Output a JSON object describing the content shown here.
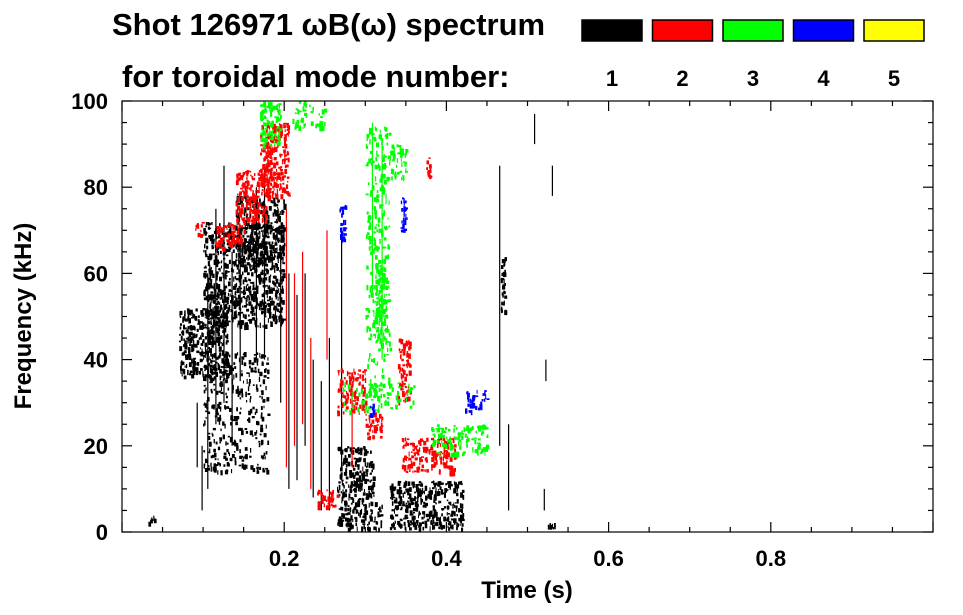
{
  "chart_data": {
    "type": "heatmap",
    "title_line1": "Shot 126971 ωB(ω) spectrum",
    "title_line2": "for toroidal mode number:",
    "xlabel": "Time (s)",
    "ylabel": "Frequency (kHz)",
    "xlim": [
      0.0,
      1.0
    ],
    "ylim": [
      0,
      100
    ],
    "x_ticks": [
      "0.2",
      "0.4",
      "0.6",
      "0.8"
    ],
    "x_tick_values": [
      0.2,
      0.4,
      0.6,
      0.8
    ],
    "y_ticks": [
      "0",
      "20",
      "40",
      "60",
      "80",
      "100"
    ],
    "y_tick_values": [
      0,
      20,
      40,
      60,
      80,
      100
    ],
    "grid": false,
    "legend_position": "top-right",
    "legend": [
      {
        "mode": "1",
        "color": "#000000"
      },
      {
        "mode": "2",
        "color": "#ff0000"
      },
      {
        "mode": "3",
        "color": "#00ff00"
      },
      {
        "mode": "4",
        "color": "#0000ff"
      },
      {
        "mode": "5",
        "color": "#ffff00"
      }
    ],
    "series": [
      {
        "mode": "1",
        "color": "#000000",
        "blobs": [
          {
            "t": [
              0.07,
              0.13
            ],
            "f": [
              36,
              52
            ],
            "density": 0.65
          },
          {
            "t": [
              0.1,
              0.2
            ],
            "f": [
              48,
              72
            ],
            "density": 0.55
          },
          {
            "t": [
              0.14,
              0.2
            ],
            "f": [
              62,
              78
            ],
            "density": 0.5
          },
          {
            "t": [
              0.1,
              0.18
            ],
            "f": [
              14,
              42
            ],
            "density": 0.25
          },
          {
            "t": [
              0.265,
              0.31
            ],
            "f": [
              1,
              20
            ],
            "density": 0.55
          },
          {
            "t": [
              0.31,
              0.32
            ],
            "f": [
              1,
              7
            ],
            "density": 0.5
          },
          {
            "t": [
              0.33,
              0.42
            ],
            "f": [
              1,
              12
            ],
            "density": 0.6
          },
          {
            "t": [
              0.467,
              0.472
            ],
            "f": [
              50,
              64
            ],
            "density": 0.8
          },
          {
            "t": [
              0.03,
              0.04
            ],
            "f": [
              2,
              4
            ],
            "density": 0.6
          },
          {
            "t": [
              0.525,
              0.535
            ],
            "f": [
              1,
              3
            ],
            "density": 0.6
          }
        ],
        "streaks": [
          {
            "t": 0.105,
            "f": [
              10,
              60
            ]
          },
          {
            "t": 0.115,
            "f": [
              25,
              75
            ]
          },
          {
            "t": 0.125,
            "f": [
              30,
              85
            ]
          },
          {
            "t": 0.135,
            "f": [
              20,
              65
            ]
          },
          {
            "t": 0.145,
            "f": [
              35,
              70
            ]
          },
          {
            "t": 0.165,
            "f": [
              40,
              80
            ]
          },
          {
            "t": 0.175,
            "f": [
              40,
              85
            ]
          },
          {
            "t": 0.205,
            "f": [
              10,
              60
            ]
          },
          {
            "t": 0.215,
            "f": [
              12,
              55
            ]
          },
          {
            "t": 0.225,
            "f": [
              20,
              60
            ]
          },
          {
            "t": 0.235,
            "f": [
              8,
              40
            ]
          },
          {
            "t": 0.245,
            "f": [
              5,
              35
            ]
          },
          {
            "t": 0.255,
            "f": [
              5,
              45
            ]
          },
          {
            "t": 0.27,
            "f": [
              15,
              70
            ]
          },
          {
            "t": 0.092,
            "f": [
              15,
              30
            ]
          },
          {
            "t": 0.098,
            "f": [
              5,
              20
            ]
          },
          {
            "t": 0.465,
            "f": [
              20,
              85
            ]
          },
          {
            "t": 0.476,
            "f": [
              5,
              25
            ]
          },
          {
            "t": 0.508,
            "f": [
              90,
              97
            ]
          },
          {
            "t": 0.522,
            "f": [
              35,
              40
            ]
          },
          {
            "t": 0.52,
            "f": [
              5,
              10
            ]
          },
          {
            "t": 0.53,
            "f": [
              78,
              85
            ]
          },
          {
            "t": 0.195,
            "f": [
              30,
              65
            ]
          }
        ]
      },
      {
        "mode": "2",
        "color": "#ff0000",
        "blobs": [
          {
            "t": [
              0.115,
              0.15
            ],
            "f": [
              66,
              72
            ],
            "density": 0.6
          },
          {
            "t": [
              0.14,
              0.18
            ],
            "f": [
              72,
              84
            ],
            "density": 0.65
          },
          {
            "t": [
              0.17,
              0.205
            ],
            "f": [
              78,
              95
            ],
            "density": 0.7
          },
          {
            "t": [
              0.24,
              0.265
            ],
            "f": [
              6,
              10
            ],
            "density": 0.6
          },
          {
            "t": [
              0.265,
              0.3
            ],
            "f": [
              28,
              38
            ],
            "density": 0.5
          },
          {
            "t": [
              0.3,
              0.32
            ],
            "f": [
              22,
              28
            ],
            "density": 0.5
          },
          {
            "t": [
              0.34,
              0.355
            ],
            "f": [
              30,
              45
            ],
            "density": 0.55
          },
          {
            "t": [
              0.345,
              0.41
            ],
            "f": [
              14,
              22
            ],
            "density": 0.55
          },
          {
            "t": [
              0.375,
              0.38
            ],
            "f": [
              82,
              87
            ],
            "density": 0.8
          },
          {
            "t": [
              0.09,
              0.1
            ],
            "f": [
              69,
              72
            ],
            "density": 0.6
          }
        ],
        "streaks": [
          {
            "t": 0.202,
            "f": [
              15,
              75
            ]
          },
          {
            "t": 0.212,
            "f": [
              20,
              60
            ]
          },
          {
            "t": 0.222,
            "f": [
              25,
              65
            ]
          },
          {
            "t": 0.232,
            "f": [
              10,
              45
            ]
          },
          {
            "t": 0.252,
            "f": [
              40,
              70
            ]
          },
          {
            "t": 0.283,
            "f": [
              15,
              35
            ]
          }
        ]
      },
      {
        "mode": "3",
        "color": "#00ff00",
        "blobs": [
          {
            "t": [
              0.17,
              0.195
            ],
            "f": [
              90,
              100
            ],
            "density": 0.65
          },
          {
            "t": [
              0.21,
              0.25
            ],
            "f": [
              94,
              100
            ],
            "density": 0.35
          },
          {
            "t": [
              0.312,
              0.325
            ],
            "f": [
              44,
              62
            ],
            "density": 0.8
          },
          {
            "t": [
              0.3,
              0.33
            ],
            "f": [
              30,
              95
            ],
            "density": 0.25
          },
          {
            "t": [
              0.38,
              0.45
            ],
            "f": [
              18,
              25
            ],
            "density": 0.45
          },
          {
            "t": [
              0.27,
              0.36
            ],
            "f": [
              28,
              35
            ],
            "density": 0.2
          },
          {
            "t": [
              0.33,
              0.35
            ],
            "f": [
              82,
              90
            ],
            "density": 0.5
          }
        ],
        "streaks": [
          {
            "t": 0.32,
            "f": [
              40,
              90
            ]
          },
          {
            "t": 0.308,
            "f": [
              55,
              95
            ]
          }
        ]
      },
      {
        "mode": "4",
        "color": "#0000ff",
        "blobs": [
          {
            "t": [
              0.268,
              0.275
            ],
            "f": [
              68,
              76
            ],
            "density": 0.7
          },
          {
            "t": [
              0.343,
              0.35
            ],
            "f": [
              70,
              78
            ],
            "density": 0.7
          },
          {
            "t": [
              0.42,
              0.45
            ],
            "f": [
              28,
              33
            ],
            "density": 0.4
          },
          {
            "t": [
              0.305,
              0.31
            ],
            "f": [
              27,
              30
            ],
            "density": 0.6
          }
        ],
        "streaks": []
      },
      {
        "mode": "5",
        "color": "#ffff00",
        "blobs": [],
        "streaks": []
      }
    ]
  }
}
